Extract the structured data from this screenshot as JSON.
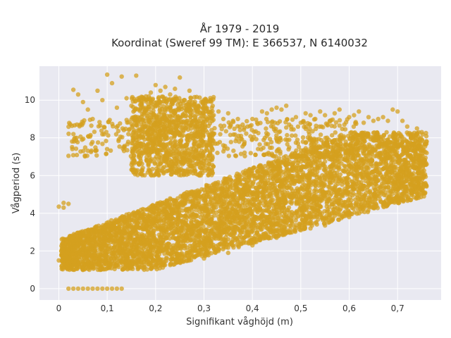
{
  "chart_data": {
    "type": "scatter",
    "title_lines": [
      "År 1979 - 2019",
      "Koordinat (Sweref 99 TM): E 366537, N 6140032"
    ],
    "xlabel": "Signifikant våghöjd (m)",
    "ylabel": "Vågperiod (s)",
    "xlim": [
      -0.04,
      0.79
    ],
    "ylim": [
      -0.6,
      11.8
    ],
    "x_ticks": [
      0,
      0.1,
      0.2,
      0.3,
      0.4,
      0.5,
      0.6,
      0.7
    ],
    "x_tick_labels": [
      "0",
      "0,1",
      "0,2",
      "0,3",
      "0,4",
      "0,5",
      "0,6",
      "0,7"
    ],
    "y_ticks": [
      0,
      2,
      4,
      6,
      8,
      10
    ],
    "y_tick_labels": [
      "0",
      "2",
      "4",
      "6",
      "8",
      "10"
    ],
    "grid": true,
    "colors": {
      "marker": "#d4a01f",
      "plot_bg": "#e9e9f1",
      "grid": "#ffffff"
    },
    "series": [
      {
        "points": [
          [
            0.02,
            0
          ],
          [
            0.03,
            0
          ],
          [
            0.04,
            0
          ],
          [
            0.05,
            0
          ],
          [
            0.06,
            0
          ],
          [
            0.07,
            0
          ],
          [
            0.08,
            0
          ],
          [
            0.09,
            0
          ],
          [
            0.1,
            0
          ],
          [
            0.11,
            0
          ],
          [
            0.12,
            0
          ],
          [
            0.13,
            0
          ],
          [
            0.0,
            1.5
          ],
          [
            0.0,
            4.35
          ],
          [
            0.01,
            4.3
          ],
          [
            0.01,
            4.55
          ],
          [
            0.02,
            4.5
          ],
          [
            0.02,
            2.2
          ],
          [
            0.01,
            2.0
          ],
          [
            0.03,
            10.55
          ],
          [
            0.04,
            10.3
          ],
          [
            0.05,
            9.9
          ],
          [
            0.06,
            9.5
          ],
          [
            0.07,
            9.0
          ],
          [
            0.08,
            10.5
          ],
          [
            0.09,
            10.0
          ],
          [
            0.1,
            11.35
          ],
          [
            0.11,
            10.9
          ],
          [
            0.12,
            9.6
          ],
          [
            0.13,
            11.25
          ],
          [
            0.14,
            10.1
          ],
          [
            0.15,
            9.7
          ],
          [
            0.16,
            11.3
          ],
          [
            0.17,
            9.6
          ],
          [
            0.18,
            10.2
          ],
          [
            0.19,
            10.4
          ],
          [
            0.2,
            10.8
          ],
          [
            0.21,
            10.5
          ],
          [
            0.22,
            10.7
          ],
          [
            0.23,
            10.3
          ],
          [
            0.24,
            10.6
          ],
          [
            0.25,
            11.2
          ],
          [
            0.26,
            10.0
          ],
          [
            0.27,
            10.5
          ],
          [
            0.28,
            9.8
          ],
          [
            0.29,
            9.6
          ],
          [
            0.3,
            9.3
          ],
          [
            0.31,
            9.4
          ],
          [
            0.32,
            9.2
          ],
          [
            0.33,
            9.4
          ],
          [
            0.34,
            9.0
          ],
          [
            0.35,
            9.3
          ],
          [
            0.36,
            8.9
          ],
          [
            0.37,
            9.0
          ],
          [
            0.38,
            8.7
          ],
          [
            0.39,
            8.6
          ],
          [
            0.4,
            9.0
          ],
          [
            0.41,
            8.8
          ],
          [
            0.42,
            9.4
          ],
          [
            0.43,
            9.3
          ],
          [
            0.44,
            9.5
          ],
          [
            0.45,
            9.6
          ],
          [
            0.46,
            9.5
          ],
          [
            0.47,
            9.7
          ],
          [
            0.48,
            8.6
          ],
          [
            0.49,
            9.1
          ],
          [
            0.5,
            8.8
          ],
          [
            0.51,
            9.3
          ],
          [
            0.52,
            9.2
          ],
          [
            0.53,
            9.0
          ],
          [
            0.54,
            9.4
          ],
          [
            0.55,
            9.2
          ],
          [
            0.56,
            8.9
          ],
          [
            0.57,
            9.3
          ],
          [
            0.58,
            9.5
          ],
          [
            0.59,
            8.7
          ],
          [
            0.6,
            9.1
          ],
          [
            0.61,
            9.2
          ],
          [
            0.62,
            9.4
          ],
          [
            0.63,
            8.8
          ],
          [
            0.64,
            9.1
          ],
          [
            0.65,
            8.9
          ],
          [
            0.66,
            9.0
          ],
          [
            0.67,
            9.1
          ],
          [
            0.68,
            8.9
          ],
          [
            0.69,
            9.5
          ],
          [
            0.7,
            9.4
          ],
          [
            0.71,
            8.9
          ],
          [
            0.72,
            8.6
          ],
          [
            0.73,
            8.2
          ],
          [
            0.74,
            8.5
          ],
          [
            0.75,
            8.3
          ],
          [
            0.76,
            7.8
          ],
          [
            0.76,
            7.2
          ],
          [
            0.76,
            6.6
          ],
          [
            0.75,
            6.2
          ],
          [
            0.74,
            5.8
          ],
          [
            0.73,
            5.5
          ],
          [
            0.72,
            5.2
          ],
          [
            0.05,
            1.0
          ],
          [
            0.1,
            1.1
          ],
          [
            0.15,
            1.2
          ],
          [
            0.2,
            1.3
          ],
          [
            0.25,
            1.4
          ],
          [
            0.3,
            1.6
          ],
          [
            0.35,
            1.9
          ],
          [
            0.4,
            2.3
          ],
          [
            0.45,
            2.7
          ],
          [
            0.5,
            3.1
          ],
          [
            0.52,
            3.2
          ],
          [
            0.55,
            3.35
          ],
          [
            0.6,
            3.8
          ],
          [
            0.65,
            4.3
          ],
          [
            0.7,
            4.9
          ],
          [
            0.36,
            2.8
          ],
          [
            0.4,
            3.2
          ],
          [
            0.45,
            3.4
          ]
        ]
      }
    ]
  }
}
